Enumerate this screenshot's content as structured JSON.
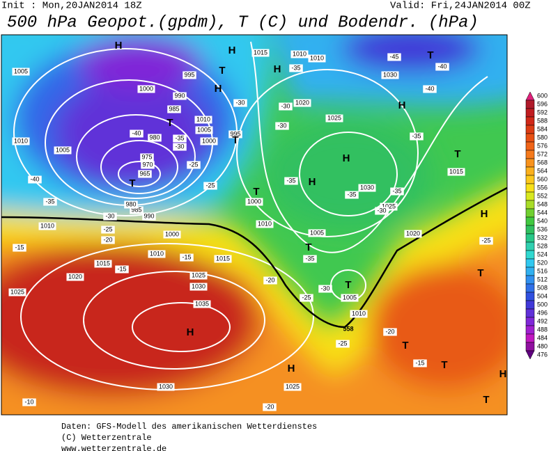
{
  "header": {
    "init": "Init : Mon,20JAN2014 18Z",
    "valid": "Valid: Fri,24JAN2014 00Z",
    "title": "500 hPa Geopot.(gpdm), T (C) und Bodendr. (hPa)"
  },
  "map": {
    "pressure_labels": [
      "1000",
      "995",
      "990",
      "985",
      "980",
      "975",
      "970",
      "965",
      "1010",
      "1005",
      "1015",
      "1010",
      "1010",
      "1030",
      "1020",
      "1025",
      "1030",
      "1025",
      "1020",
      "1010",
      "1000",
      "1010",
      "1015",
      "1020",
      "1025",
      "1025",
      "1030",
      "1035",
      "1030",
      "1025",
      "1005",
      "1010",
      "1015",
      "1000",
      "1010",
      "1005",
      "1000",
      "995",
      "990",
      "985",
      "980",
      "1015",
      "1005",
      "1010",
      "1005"
    ],
    "temperature_labels": [
      "-40",
      "-35",
      "-30",
      "-25",
      "-20",
      "-15",
      "-15",
      "-15",
      "-30",
      "-30",
      "-30",
      "-35",
      "-35",
      "-35",
      "-30",
      "-35",
      "-40",
      "-40",
      "-45",
      "-25",
      "-25",
      "-30",
      "-35",
      "-40",
      "-25",
      "-30",
      "-20",
      "-20",
      "-25",
      "-15",
      "-20",
      "-10",
      "-25",
      "-35",
      "-35"
    ],
    "centers": [
      "H",
      "H",
      "H",
      "T",
      "H",
      "T",
      "T",
      "T",
      "T",
      "H",
      "T",
      "H",
      "H",
      "T",
      "T",
      "T",
      "H",
      "T",
      "H",
      "H",
      "T",
      "T",
      "H",
      "T"
    ],
    "contour_label": "558"
  },
  "scale": {
    "values": [
      600,
      596,
      592,
      588,
      584,
      580,
      576,
      572,
      568,
      564,
      560,
      556,
      552,
      548,
      544,
      540,
      536,
      532,
      528,
      524,
      520,
      516,
      512,
      508,
      504,
      500,
      496,
      492,
      488,
      484,
      480,
      476
    ],
    "colors": [
      "#e0207a",
      "#b01a2a",
      "#c01c20",
      "#d02818",
      "#dc3c14",
      "#e85014",
      "#f06418",
      "#f57a1c",
      "#f8921c",
      "#fbb01c",
      "#fcc81c",
      "#f8e018",
      "#d8e820",
      "#a8dc28",
      "#70d030",
      "#40c840",
      "#30c060",
      "#28c888",
      "#30d0b0",
      "#30d8d0",
      "#30c8f0",
      "#30b0f0",
      "#3090f0",
      "#3070e8",
      "#3050e0",
      "#4038d8",
      "#6030d8",
      "#8028d8",
      "#a020d0",
      "#c018c0",
      "#9010a0",
      "#600080"
    ]
  },
  "footer": {
    "lines": [
      "Daten: GFS-Modell des amerikanischen Wetterdienstes",
      "(C) Wetterzentrale",
      "www.wetterzentrale.de"
    ]
  }
}
